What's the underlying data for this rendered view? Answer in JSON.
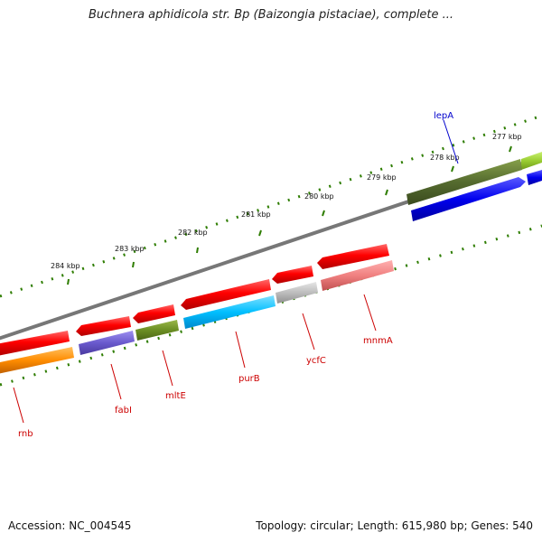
{
  "title": "Buchnera aphidicola str. Bp (Baizongia pistaciae), complete ...",
  "footer": {
    "accession": "Accession: NC_004545",
    "topology": "Topology: circular; Length: 615,980 bp; Genes: 540"
  },
  "scale_labels": [
    "277 kbp",
    "278 kbp",
    "279 kbp",
    "280 kbp",
    "281 kbp",
    "282 kbp",
    "283 kbp",
    "284 kbp"
  ],
  "gene_labels": [
    "lepA",
    "mnmA",
    "ycfC",
    "purB",
    "mltE",
    "fabI",
    "rnb"
  ],
  "colors": {
    "forward_red": "#ee0000",
    "backbone": "#777777",
    "tick_green": "#2e7d00",
    "rnb": "#ff8c00",
    "fabI": "#6a5acd",
    "mltE": "#6b8e23",
    "purB": "#00bfff",
    "ycfC": "#b0b0b0",
    "mnmA": "#f08080",
    "lepA_reverse": "#0000ee",
    "olive_forward": "#556b2f",
    "lime_forward": "#9acd32"
  }
}
